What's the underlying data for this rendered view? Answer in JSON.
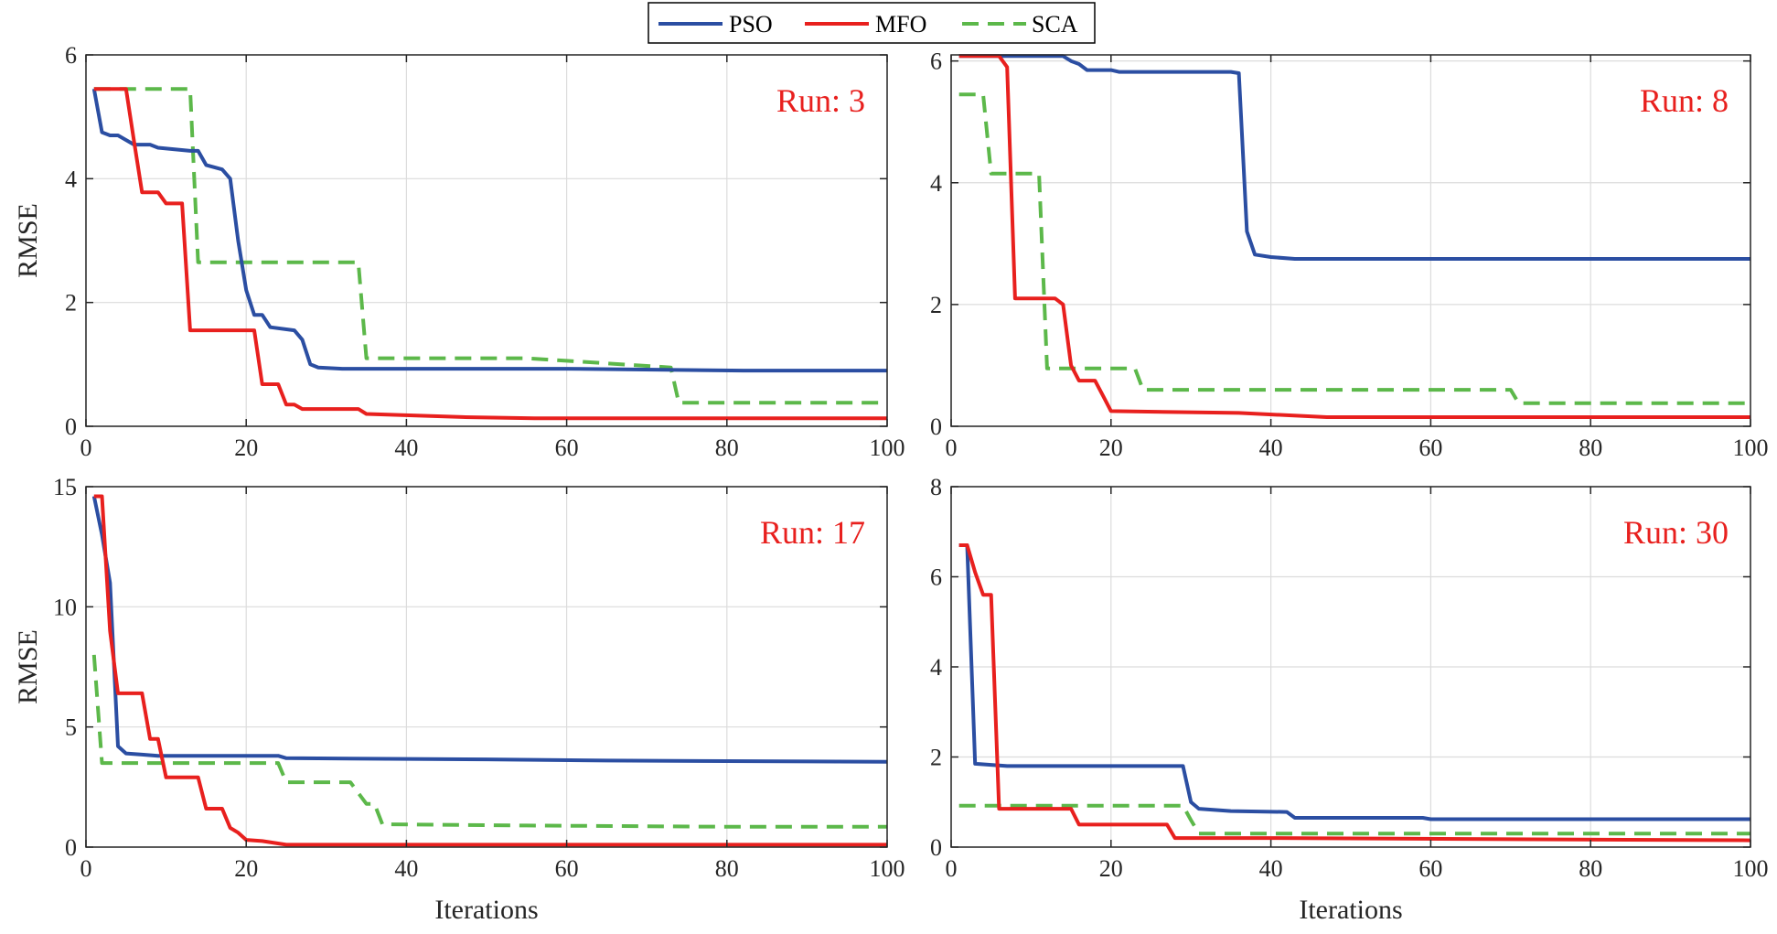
{
  "legend": {
    "placement": "top-center",
    "entries": [
      {
        "name": "PSO",
        "color": "#2b4ea2",
        "dash": "solid"
      },
      {
        "name": "MFO",
        "color": "#e8201e",
        "dash": "solid"
      },
      {
        "name": "SCA",
        "color": "#5cb84a",
        "dash": "dashed"
      }
    ]
  },
  "run_label_color": "#e8201e",
  "chart_data": [
    {
      "type": "line",
      "annotation": "Run: 3",
      "xlabel": "",
      "ylabel": "RMSE",
      "xlim": [
        0,
        100
      ],
      "ylim": [
        0,
        6
      ],
      "xticks": [
        "0",
        "20",
        "40",
        "60",
        "80",
        "100"
      ],
      "yticks": [
        "0",
        "2",
        "4",
        "6"
      ],
      "grid": true,
      "series": [
        {
          "name": "PSO",
          "points": [
            [
              1,
              5.45
            ],
            [
              2,
              4.75
            ],
            [
              3,
              4.7
            ],
            [
              4,
              4.7
            ],
            [
              6,
              4.55
            ],
            [
              8,
              4.55
            ],
            [
              9,
              4.5
            ],
            [
              13,
              4.45
            ],
            [
              14,
              4.45
            ],
            [
              15,
              4.22
            ],
            [
              17,
              4.15
            ],
            [
              18,
              4.0
            ],
            [
              19,
              3.0
            ],
            [
              20,
              2.2
            ],
            [
              21,
              1.8
            ],
            [
              22,
              1.8
            ],
            [
              23,
              1.6
            ],
            [
              26,
              1.55
            ],
            [
              27,
              1.4
            ],
            [
              28,
              1.0
            ],
            [
              29,
              0.95
            ],
            [
              32,
              0.93
            ],
            [
              60,
              0.93
            ],
            [
              82,
              0.9
            ],
            [
              100,
              0.9
            ]
          ]
        },
        {
          "name": "MFO",
          "points": [
            [
              1,
              5.45
            ],
            [
              5,
              5.45
            ],
            [
              6,
              4.6
            ],
            [
              7,
              3.78
            ],
            [
              8,
              3.78
            ],
            [
              9,
              3.78
            ],
            [
              10,
              3.6
            ],
            [
              12,
              3.6
            ],
            [
              13,
              1.55
            ],
            [
              21,
              1.55
            ],
            [
              22,
              0.68
            ],
            [
              24,
              0.68
            ],
            [
              25,
              0.35
            ],
            [
              26,
              0.35
            ],
            [
              27,
              0.28
            ],
            [
              34,
              0.28
            ],
            [
              35,
              0.2
            ],
            [
              47,
              0.15
            ],
            [
              56,
              0.13
            ],
            [
              100,
              0.13
            ]
          ]
        },
        {
          "name": "SCA",
          "points": [
            [
              1,
              5.45
            ],
            [
              13,
              5.45
            ],
            [
              14,
              2.65
            ],
            [
              34,
              2.65
            ],
            [
              35,
              1.1
            ],
            [
              55,
              1.1
            ],
            [
              73,
              0.95
            ],
            [
              74,
              0.38
            ],
            [
              100,
              0.38
            ]
          ]
        }
      ]
    },
    {
      "type": "line",
      "annotation": "Run: 8",
      "xlabel": "",
      "ylabel": "",
      "xlim": [
        0,
        100
      ],
      "ylim": [
        0,
        6.1
      ],
      "xticks": [
        "0",
        "20",
        "40",
        "60",
        "80",
        "100"
      ],
      "yticks": [
        "0",
        "2",
        "4",
        "6"
      ],
      "grid": true,
      "series": [
        {
          "name": "PSO",
          "points": [
            [
              1,
              6.08
            ],
            [
              14,
              6.08
            ],
            [
              15,
              6.0
            ],
            [
              16,
              5.95
            ],
            [
              17,
              5.85
            ],
            [
              20,
              5.85
            ],
            [
              21,
              5.82
            ],
            [
              35,
              5.82
            ],
            [
              36,
              5.8
            ],
            [
              37,
              3.2
            ],
            [
              38,
              2.82
            ],
            [
              40,
              2.78
            ],
            [
              43,
              2.75
            ],
            [
              100,
              2.75
            ]
          ]
        },
        {
          "name": "MFO",
          "points": [
            [
              1,
              6.08
            ],
            [
              6,
              6.08
            ],
            [
              7,
              5.9
            ],
            [
              8,
              2.1
            ],
            [
              13,
              2.1
            ],
            [
              14,
              2.0
            ],
            [
              15,
              1.0
            ],
            [
              16,
              0.75
            ],
            [
              18,
              0.75
            ],
            [
              19,
              0.5
            ],
            [
              20,
              0.25
            ],
            [
              36,
              0.22
            ],
            [
              47,
              0.15
            ],
            [
              100,
              0.15
            ]
          ]
        },
        {
          "name": "SCA",
          "points": [
            [
              1,
              5.45
            ],
            [
              4,
              5.45
            ],
            [
              5,
              4.15
            ],
            [
              11,
              4.15
            ],
            [
              12,
              0.95
            ],
            [
              23,
              0.95
            ],
            [
              24,
              0.6
            ],
            [
              70,
              0.6
            ],
            [
              71,
              0.38
            ],
            [
              100,
              0.38
            ]
          ]
        }
      ]
    },
    {
      "type": "line",
      "annotation": "Run: 17",
      "xlabel": "Iterations",
      "ylabel": "RMSE",
      "xlim": [
        0,
        100
      ],
      "ylim": [
        0,
        15
      ],
      "xticks": [
        "0",
        "20",
        "40",
        "60",
        "80",
        "100"
      ],
      "yticks": [
        "0",
        "5",
        "10",
        "15"
      ],
      "grid": true,
      "series": [
        {
          "name": "PSO",
          "points": [
            [
              1,
              14.6
            ],
            [
              2,
              13.0
            ],
            [
              3,
              11.0
            ],
            [
              4,
              4.2
            ],
            [
              5,
              3.9
            ],
            [
              7,
              3.85
            ],
            [
              9,
              3.8
            ],
            [
              24,
              3.8
            ],
            [
              25,
              3.7
            ],
            [
              50,
              3.65
            ],
            [
              65,
              3.6
            ],
            [
              100,
              3.55
            ]
          ]
        },
        {
          "name": "MFO",
          "points": [
            [
              1,
              14.6
            ],
            [
              2,
              14.6
            ],
            [
              3,
              9.0
            ],
            [
              4,
              6.4
            ],
            [
              7,
              6.4
            ],
            [
              8,
              4.5
            ],
            [
              9,
              4.5
            ],
            [
              10,
              2.9
            ],
            [
              14,
              2.9
            ],
            [
              15,
              1.6
            ],
            [
              17,
              1.6
            ],
            [
              18,
              0.8
            ],
            [
              19,
              0.6
            ],
            [
              20,
              0.3
            ],
            [
              22,
              0.25
            ],
            [
              25,
              0.1
            ],
            [
              100,
              0.1
            ]
          ]
        },
        {
          "name": "SCA",
          "points": [
            [
              1,
              8.0
            ],
            [
              2,
              3.5
            ],
            [
              24,
              3.5
            ],
            [
              25,
              2.7
            ],
            [
              33,
              2.7
            ],
            [
              35,
              1.8
            ],
            [
              36,
              1.8
            ],
            [
              37,
              0.95
            ],
            [
              55,
              0.9
            ],
            [
              79,
              0.85
            ],
            [
              100,
              0.85
            ]
          ]
        }
      ]
    },
    {
      "type": "line",
      "annotation": "Run: 30",
      "xlabel": "Iterations",
      "ylabel": "",
      "xlim": [
        0,
        100
      ],
      "ylim": [
        0,
        8
      ],
      "xticks": [
        "0",
        "20",
        "40",
        "60",
        "80",
        "100"
      ],
      "yticks": [
        "0",
        "2",
        "4",
        "6",
        "8"
      ],
      "grid": true,
      "series": [
        {
          "name": "PSO",
          "points": [
            [
              1,
              6.7
            ],
            [
              2,
              6.7
            ],
            [
              3,
              1.85
            ],
            [
              7,
              1.8
            ],
            [
              29,
              1.8
            ],
            [
              30,
              1.0
            ],
            [
              31,
              0.85
            ],
            [
              35,
              0.8
            ],
            [
              42,
              0.78
            ],
            [
              43,
              0.65
            ],
            [
              59,
              0.65
            ],
            [
              60,
              0.62
            ],
            [
              100,
              0.62
            ]
          ]
        },
        {
          "name": "MFO",
          "points": [
            [
              1,
              6.7
            ],
            [
              2,
              6.7
            ],
            [
              3,
              6.1
            ],
            [
              4,
              5.6
            ],
            [
              5,
              5.6
            ],
            [
              6,
              0.85
            ],
            [
              15,
              0.85
            ],
            [
              16,
              0.5
            ],
            [
              27,
              0.5
            ],
            [
              28,
              0.2
            ],
            [
              40,
              0.2
            ],
            [
              100,
              0.15
            ]
          ]
        },
        {
          "name": "SCA",
          "points": [
            [
              1,
              0.92
            ],
            [
              29,
              0.92
            ],
            [
              30,
              0.6
            ],
            [
              31,
              0.3
            ],
            [
              100,
              0.3
            ]
          ]
        }
      ]
    }
  ]
}
